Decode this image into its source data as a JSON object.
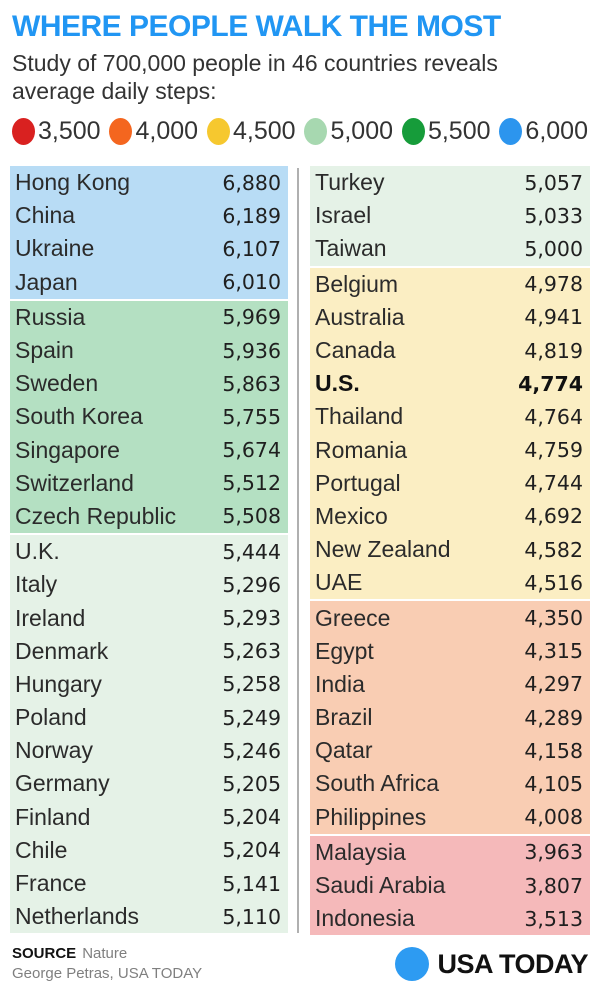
{
  "header": {
    "title": "WHERE PEOPLE WALK THE MOST",
    "subtitle_line1": "Study of 700,000 people in 46 countries reveals",
    "subtitle_line2": "average daily steps:"
  },
  "legend": [
    {
      "label": "3,500",
      "color": "#d92120"
    },
    {
      "label": "4,000",
      "color": "#f4661f"
    },
    {
      "label": "4,500",
      "color": "#f6c82f"
    },
    {
      "label": "5,000",
      "color": "#a7d8b0"
    },
    {
      "label": "5,500",
      "color": "#169c3a"
    },
    {
      "label": "6,000",
      "color": "#2c95ee"
    }
  ],
  "table": {
    "left_sections": [
      {
        "bin": "6,000",
        "color": "#b8dcf5",
        "rows": [
          {
            "country": "Hong Kong",
            "steps": "6,880"
          },
          {
            "country": "China",
            "steps": "6,189"
          },
          {
            "country": "Ukraine",
            "steps": "6,107"
          },
          {
            "country": "Japan",
            "steps": "6,010"
          }
        ]
      },
      {
        "bin": "5,500",
        "color": "#b4e0c2",
        "rows": [
          {
            "country": "Russia",
            "steps": "5,969"
          },
          {
            "country": "Spain",
            "steps": "5,936"
          },
          {
            "country": "Sweden",
            "steps": "5,863"
          },
          {
            "country": "South Korea",
            "steps": "5,755"
          },
          {
            "country": "Singapore",
            "steps": "5,674"
          },
          {
            "country": "Switzerland",
            "steps": "5,512"
          },
          {
            "country": "Czech Republic",
            "steps": "5,508"
          }
        ]
      },
      {
        "bin": "5,000",
        "color": "#e5f2e7",
        "rows": [
          {
            "country": "U.K.",
            "steps": "5,444"
          },
          {
            "country": "Italy",
            "steps": "5,296"
          },
          {
            "country": "Ireland",
            "steps": "5,293"
          },
          {
            "country": "Denmark",
            "steps": "5,263"
          },
          {
            "country": "Hungary",
            "steps": "5,258"
          },
          {
            "country": "Poland",
            "steps": "5,249"
          },
          {
            "country": "Norway",
            "steps": "5,246"
          },
          {
            "country": "Germany",
            "steps": "5,205"
          },
          {
            "country": "Finland",
            "steps": "5,204"
          },
          {
            "country": "Chile",
            "steps": "5,204"
          },
          {
            "country": "France",
            "steps": "5,141"
          },
          {
            "country": "Netherlands",
            "steps": "5,110"
          }
        ]
      }
    ],
    "right_sections": [
      {
        "bin": "5,000",
        "color": "#e5f2e7",
        "rows": [
          {
            "country": "Turkey",
            "steps": "5,057"
          },
          {
            "country": "Israel",
            "steps": "5,033"
          },
          {
            "country": "Taiwan",
            "steps": "5,000"
          }
        ]
      },
      {
        "bin": "4,500",
        "color": "#fbeec3",
        "rows": [
          {
            "country": "Belgium",
            "steps": "4,978"
          },
          {
            "country": "Australia",
            "steps": "4,941"
          },
          {
            "country": "Canada",
            "steps": "4,819"
          },
          {
            "country": "U.S.",
            "steps": "4,774",
            "bold": true
          },
          {
            "country": "Thailand",
            "steps": "4,764"
          },
          {
            "country": "Romania",
            "steps": "4,759"
          },
          {
            "country": "Portugal",
            "steps": "4,744"
          },
          {
            "country": "Mexico",
            "steps": "4,692"
          },
          {
            "country": "New Zealand",
            "steps": "4,582"
          },
          {
            "country": "UAE",
            "steps": "4,516"
          }
        ]
      },
      {
        "bin": "4,000",
        "color": "#f9cdb3",
        "rows": [
          {
            "country": "Greece",
            "steps": "4,350"
          },
          {
            "country": "Egypt",
            "steps": "4,315"
          },
          {
            "country": "India",
            "steps": "4,297"
          },
          {
            "country": "Brazil",
            "steps": "4,289"
          },
          {
            "country": "Qatar",
            "steps": "4,158"
          },
          {
            "country": "South Africa",
            "steps": "4,105"
          },
          {
            "country": "Philippines",
            "steps": "4,008"
          }
        ]
      },
      {
        "bin": "3,500",
        "color": "#f5b9ba",
        "rows": [
          {
            "country": "Malaysia",
            "steps": "3,963"
          },
          {
            "country": "Saudi Arabia",
            "steps": "3,807"
          },
          {
            "country": "Indonesia",
            "steps": "3,513"
          }
        ]
      }
    ]
  },
  "footer": {
    "source_label": "SOURCE",
    "source_value": "Nature",
    "credit": "George Petras, USA TODAY",
    "logo_text": "USA TODAY",
    "logo_color": "#2d9bf2"
  },
  "chart_data": {
    "type": "table",
    "title": "WHERE PEOPLE WALK THE MOST",
    "subtitle": "Study of 700,000 people in 46 countries reveals average daily steps:",
    "metric": "average daily steps",
    "legend_position": "top",
    "legend": [
      {
        "label": "3,500",
        "value": 3500,
        "color": "#d92120"
      },
      {
        "label": "4,000",
        "value": 4000,
        "color": "#f4661f"
      },
      {
        "label": "4,500",
        "value": 4500,
        "color": "#f6c82f"
      },
      {
        "label": "5,000",
        "value": 5000,
        "color": "#a7d8b0"
      },
      {
        "label": "5,500",
        "value": 5500,
        "color": "#169c3a"
      },
      {
        "label": "6,000",
        "value": 6000,
        "color": "#2c95ee"
      }
    ],
    "categories": [
      "Hong Kong",
      "China",
      "Ukraine",
      "Japan",
      "Russia",
      "Spain",
      "Sweden",
      "South Korea",
      "Singapore",
      "Switzerland",
      "Czech Republic",
      "U.K.",
      "Italy",
      "Ireland",
      "Denmark",
      "Hungary",
      "Poland",
      "Norway",
      "Germany",
      "Finland",
      "Chile",
      "France",
      "Netherlands",
      "Turkey",
      "Israel",
      "Taiwan",
      "Belgium",
      "Australia",
      "Canada",
      "U.S.",
      "Thailand",
      "Romania",
      "Portugal",
      "Mexico",
      "New Zealand",
      "UAE",
      "Greece",
      "Egypt",
      "India",
      "Brazil",
      "Qatar",
      "South Africa",
      "Philippines",
      "Malaysia",
      "Saudi Arabia",
      "Indonesia"
    ],
    "values": [
      6880,
      6189,
      6107,
      6010,
      5969,
      5936,
      5863,
      5755,
      5674,
      5512,
      5508,
      5444,
      5296,
      5293,
      5263,
      5258,
      5249,
      5246,
      5205,
      5204,
      5204,
      5141,
      5110,
      5057,
      5033,
      5000,
      4978,
      4941,
      4819,
      4774,
      4764,
      4759,
      4744,
      4692,
      4582,
      4516,
      4350,
      4315,
      4297,
      4289,
      4158,
      4105,
      4008,
      3963,
      3807,
      3513
    ]
  }
}
